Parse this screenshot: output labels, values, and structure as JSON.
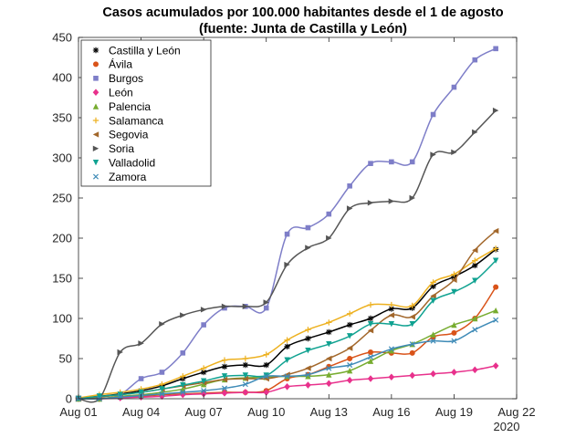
{
  "chart_data": {
    "type": "line",
    "title": [
      "Casos acumulados por 100.000 habitantes desde el 1 de agosto",
      "(fuente: Junta de Castilla y León)"
    ],
    "xlabel": "",
    "ylabel": "",
    "x_unit_label": "2020",
    "xlim": [
      1,
      22
    ],
    "ylim": [
      0,
      450
    ],
    "grid": false,
    "legend_position": "top-left",
    "x_ticks": [
      1,
      4,
      7,
      10,
      13,
      16,
      19,
      22
    ],
    "x_tick_labels": [
      "Aug 01",
      "Aug 04",
      "Aug 07",
      "Aug 10",
      "Aug 13",
      "Aug 16",
      "Aug 19",
      "Aug 22"
    ],
    "y_ticks": [
      0,
      50,
      100,
      150,
      200,
      250,
      300,
      350,
      400,
      450
    ],
    "y_tick_labels": [
      "0",
      "50",
      "100",
      "150",
      "200",
      "250",
      "300",
      "350",
      "400",
      "450"
    ],
    "x": [
      1,
      2,
      3,
      4,
      5,
      6,
      7,
      8,
      9,
      10,
      11,
      12,
      13,
      14,
      15,
      16,
      17,
      18,
      19,
      20,
      21
    ],
    "series": [
      {
        "name": "Castilla y León",
        "color": "#000000",
        "marker": "star",
        "values": [
          1,
          3,
          6,
          10,
          16,
          25,
          33,
          40,
          42,
          42,
          65,
          75,
          83,
          92,
          100,
          112,
          113,
          140,
          152,
          166,
          186
        ]
      },
      {
        "name": "Ávila",
        "color": "#d95319",
        "marker": "circle",
        "values": [
          0,
          0,
          2,
          3,
          5,
          6,
          7,
          8,
          8,
          10,
          25,
          30,
          40,
          50,
          58,
          57,
          57,
          77,
          82,
          100,
          139
        ]
      },
      {
        "name": "Burgos",
        "color": "#7e7ec8",
        "marker": "square",
        "values": [
          0,
          0,
          5,
          25,
          33,
          57,
          92,
          113,
          115,
          113,
          205,
          213,
          230,
          265,
          293,
          295,
          295,
          354,
          388,
          422,
          436
        ]
      },
      {
        "name": "León",
        "color": "#e8318c",
        "marker": "diamond",
        "values": [
          0,
          0,
          1,
          2,
          3,
          5,
          6,
          7,
          8,
          8,
          15,
          17,
          19,
          23,
          25,
          27,
          29,
          31,
          33,
          36,
          41
        ]
      },
      {
        "name": "Palencia",
        "color": "#77ac30",
        "marker": "triangle-up",
        "values": [
          0,
          0,
          3,
          5,
          8,
          12,
          18,
          24,
          26,
          27,
          28,
          28,
          30,
          35,
          47,
          60,
          68,
          80,
          92,
          100,
          110
        ]
      },
      {
        "name": "Salamanca",
        "color": "#edb120",
        "marker": "plus",
        "values": [
          1,
          5,
          8,
          12,
          18,
          28,
          38,
          48,
          50,
          55,
          73,
          86,
          95,
          106,
          117,
          117,
          116,
          145,
          155,
          172,
          187
        ]
      },
      {
        "name": "Segovia",
        "color": "#a2672b",
        "marker": "triangle-left",
        "values": [
          0,
          2,
          5,
          8,
          12,
          16,
          20,
          24,
          25,
          25,
          30,
          38,
          50,
          63,
          85,
          104,
          102,
          128,
          148,
          185,
          209
        ]
      },
      {
        "name": "Soria",
        "color": "#555555",
        "marker": "triangle-right",
        "values": [
          0,
          0,
          58,
          69,
          93,
          104,
          111,
          115,
          115,
          120,
          167,
          188,
          200,
          237,
          244,
          246,
          250,
          304,
          307,
          332,
          359
        ]
      },
      {
        "name": "Valladolid",
        "color": "#10a291",
        "marker": "triangle-down",
        "values": [
          0,
          3,
          5,
          8,
          12,
          17,
          22,
          28,
          29,
          29,
          48,
          60,
          68,
          78,
          93,
          93,
          93,
          122,
          133,
          147,
          172
        ]
      },
      {
        "name": "Zamora",
        "color": "#3f8bb7",
        "marker": "x",
        "values": [
          0,
          0,
          2,
          4,
          6,
          8,
          10,
          13,
          18,
          28,
          28,
          30,
          38,
          42,
          52,
          62,
          68,
          72,
          72,
          86,
          98
        ]
      }
    ]
  }
}
